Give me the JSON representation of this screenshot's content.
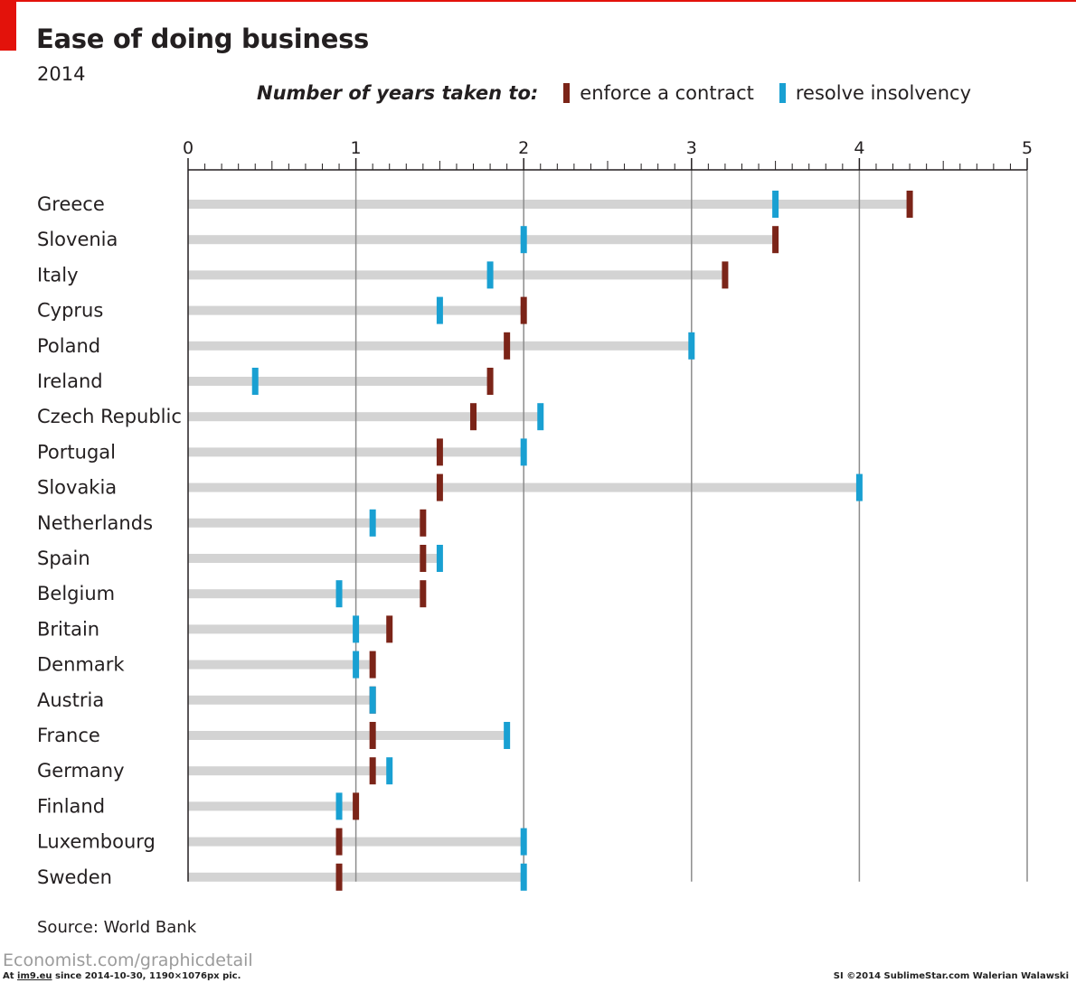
{
  "header": {
    "title": "Ease of doing business",
    "subtitle": "2014"
  },
  "legend": {
    "heading": "Number of years taken to:",
    "items": [
      {
        "label": "enforce a contract",
        "color": "#7b2418"
      },
      {
        "label": "resolve insolvency",
        "color": "#19a0d2"
      }
    ]
  },
  "chart_data": {
    "type": "dot-range",
    "title": "Ease of doing business",
    "subtitle": "2014",
    "unit": "Number of years taken to:",
    "xlim": [
      0,
      5
    ],
    "x_ticks": [
      0,
      1,
      2,
      3,
      4,
      5
    ],
    "grid": true,
    "categories": [
      "Greece",
      "Slovenia",
      "Italy",
      "Cyprus",
      "Poland",
      "Ireland",
      "Czech Republic",
      "Portugal",
      "Slovakia",
      "Netherlands",
      "Spain",
      "Belgium",
      "Britain",
      "Denmark",
      "Austria",
      "France",
      "Germany",
      "Finland",
      "Luxembourg",
      "Sweden"
    ],
    "series": [
      {
        "name": "enforce a contract",
        "color": "#7b2418",
        "values": [
          4.3,
          3.5,
          3.2,
          2.0,
          1.9,
          1.8,
          1.7,
          1.5,
          1.5,
          1.4,
          1.4,
          1.4,
          1.2,
          1.1,
          1.1,
          1.1,
          1.1,
          1.0,
          0.9,
          0.9
        ]
      },
      {
        "name": "resolve insolvency",
        "color": "#19a0d2",
        "values": [
          3.5,
          2.0,
          1.8,
          1.5,
          3.0,
          0.4,
          2.1,
          2.0,
          4.0,
          1.1,
          1.5,
          0.9,
          1.0,
          1.0,
          1.1,
          1.9,
          1.2,
          0.9,
          2.0,
          2.0
        ]
      }
    ]
  },
  "footer": {
    "source": "Source: World Bank",
    "site": "Economist.com/graphicdetail",
    "im9_prefix": "At ",
    "im9_link": "im9.eu",
    "im9_suffix": " since 2014-10-30, 1190×1076px pic.",
    "credit": "SI ©2014 SublimeStar.com Walerian Walawski"
  }
}
